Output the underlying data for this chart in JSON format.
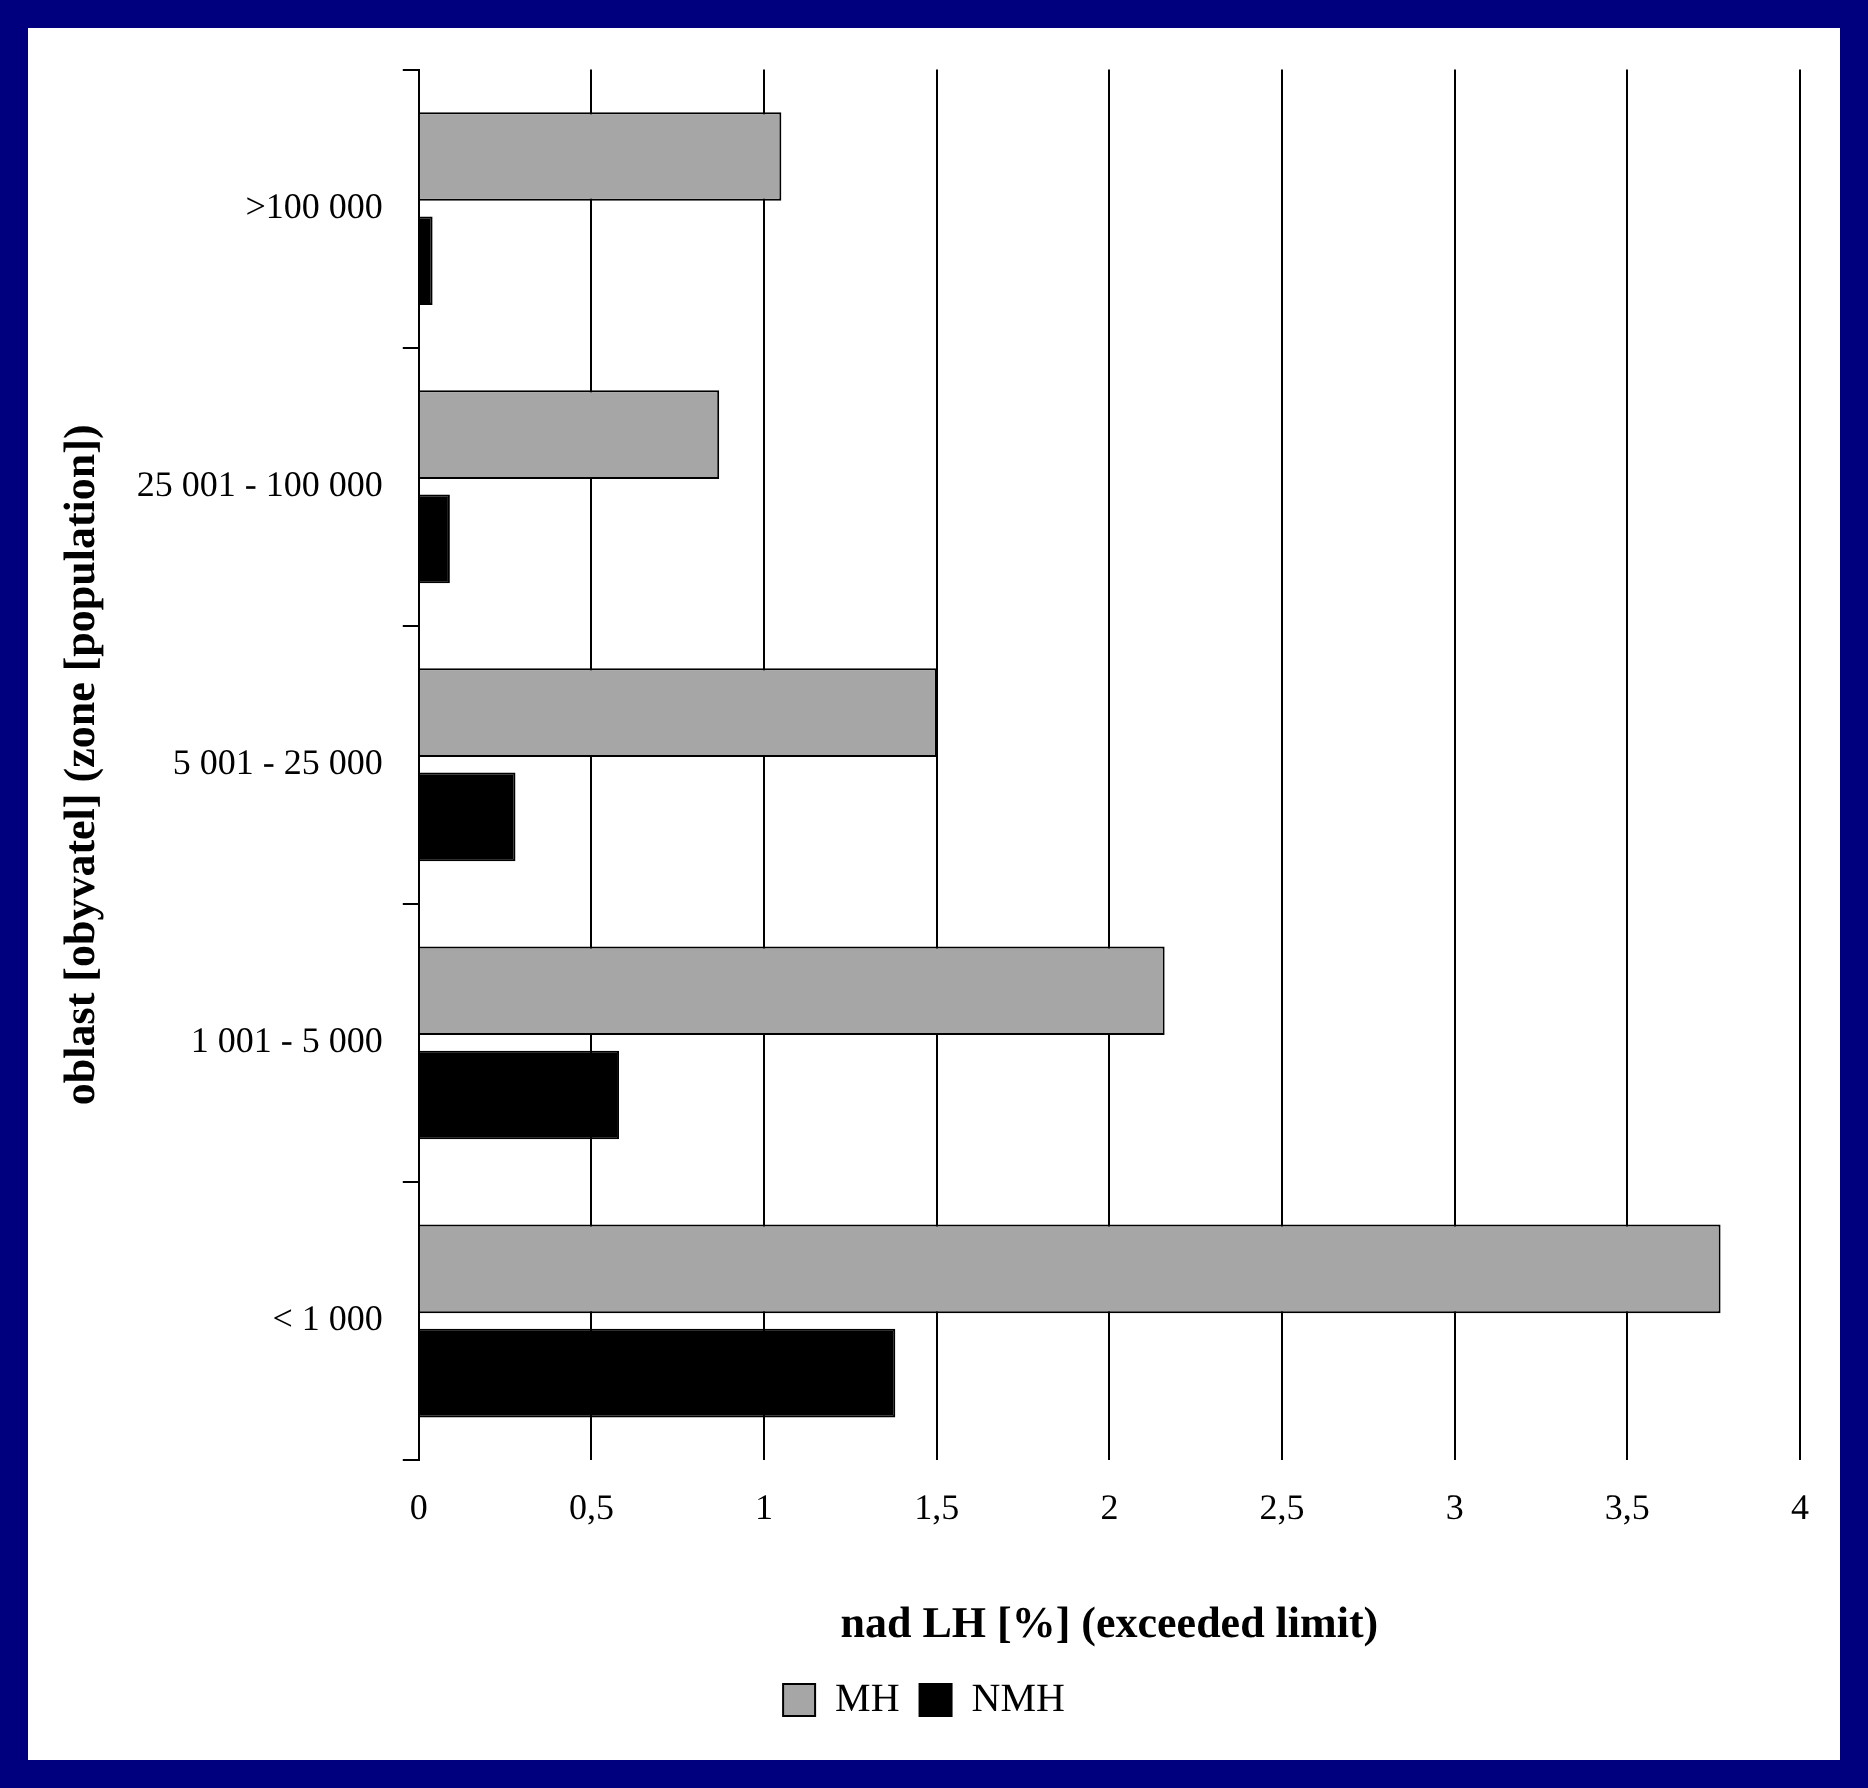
{
  "chart_data": {
    "type": "bar",
    "orientation": "horizontal",
    "xlabel": "nad LH [%] (exceeded limit)",
    "ylabel": "oblast [obyvatel] (zone [population])",
    "categories": [
      ">100 000",
      "25 001 - 100 000",
      "5 001 - 25 000",
      "1 001 - 5 000",
      "< 1 000"
    ],
    "series": [
      {
        "name": "MH",
        "color": "#a6a6a6",
        "values": [
          1.05,
          0.87,
          1.5,
          2.16,
          3.77
        ]
      },
      {
        "name": "NMH",
        "color": "#000000",
        "values": [
          0.04,
          0.09,
          0.28,
          0.58,
          1.38
        ]
      }
    ],
    "xlim": [
      0,
      4
    ],
    "xticks": [
      0,
      {
        "value": 0.5,
        "label": "0,5"
      },
      1,
      {
        "value": 1.5,
        "label": "1,5"
      },
      2,
      {
        "value": 2.5,
        "label": "2,5"
      },
      3,
      {
        "value": 3.5,
        "label": "3,5"
      },
      4
    ],
    "grid": "x",
    "legend": "bottom"
  }
}
